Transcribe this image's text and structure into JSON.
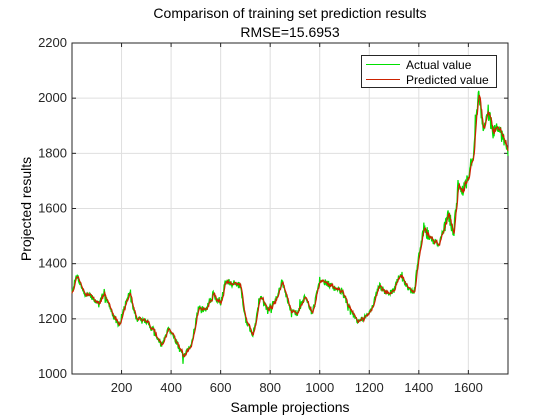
{
  "chart_data": {
    "type": "line",
    "title": "Comparison of training set prediction results",
    "subtitle": "RMSE=15.6953",
    "xlabel": "Sample projections",
    "ylabel": "Projected results",
    "xlim": [
      0,
      1760
    ],
    "ylim": [
      1000,
      2200
    ],
    "xticks": [
      200,
      400,
      600,
      800,
      1000,
      1200,
      1400,
      1600
    ],
    "yticks": [
      1000,
      1200,
      1400,
      1600,
      1800,
      2000,
      2200
    ],
    "grid": true,
    "legend_position": "top-right",
    "series": [
      {
        "name": "Actual value",
        "color": "#00e000",
        "anchors_x": [
          0,
          20,
          50,
          80,
          110,
          130,
          160,
          190,
          230,
          260,
          300,
          330,
          360,
          390,
          420,
          450,
          480,
          510,
          540,
          570,
          600,
          620,
          650,
          680,
          700,
          730,
          760,
          790,
          820,
          850,
          880,
          910,
          940,
          970,
          1000,
          1030,
          1060,
          1090,
          1120,
          1150,
          1180,
          1210,
          1240,
          1270,
          1300,
          1320,
          1350,
          1380,
          1400,
          1420,
          1450,
          1480,
          1500,
          1520,
          1540,
          1560,
          1580,
          1600,
          1620,
          1640,
          1660,
          1680,
          1700,
          1720,
          1740,
          1760
        ],
        "anchors_y": [
          1300,
          1360,
          1290,
          1280,
          1250,
          1300,
          1220,
          1180,
          1290,
          1200,
          1190,
          1160,
          1100,
          1170,
          1120,
          1060,
          1100,
          1240,
          1230,
          1290,
          1250,
          1340,
          1330,
          1320,
          1200,
          1140,
          1280,
          1230,
          1270,
          1330,
          1240,
          1220,
          1280,
          1220,
          1340,
          1330,
          1310,
          1300,
          1240,
          1190,
          1200,
          1240,
          1320,
          1290,
          1300,
          1360,
          1320,
          1290,
          1430,
          1530,
          1490,
          1470,
          1520,
          1580,
          1500,
          1700,
          1660,
          1720,
          1800,
          2020,
          1900,
          1950,
          1880,
          1900,
          1850,
          1810
        ],
        "noise": 12,
        "seed": 7
      },
      {
        "name": "Predicted value",
        "color": "#cc2200",
        "smoothing": 3,
        "offset": 3,
        "seed": 21
      }
    ]
  }
}
